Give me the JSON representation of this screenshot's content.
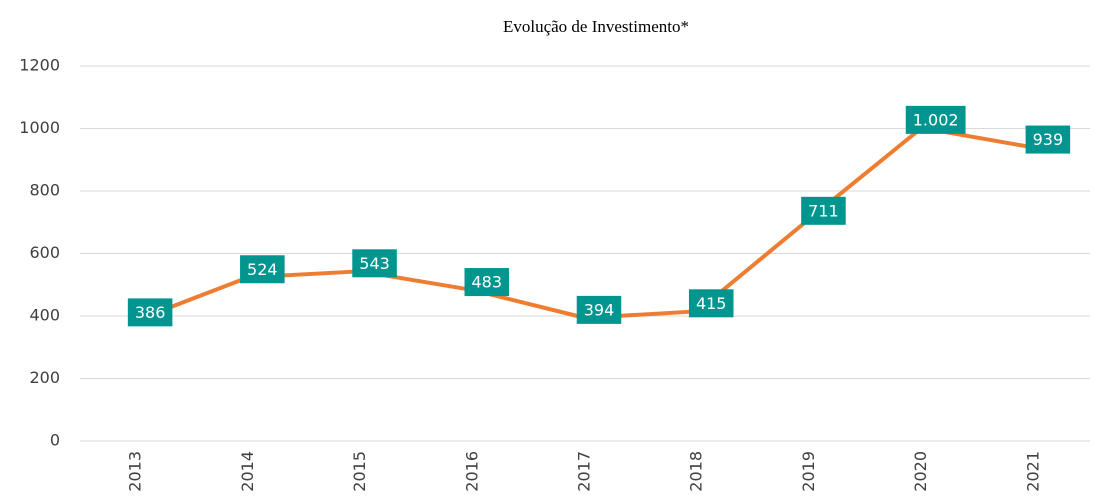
{
  "chart_data": {
    "type": "line",
    "title": "Evolução de Investimento*",
    "categories": [
      "2013",
      "2014",
      "2015",
      "2016",
      "2017",
      "2018",
      "2019",
      "2020",
      "2021"
    ],
    "series": [
      {
        "name": "Investimento",
        "color": "#ed7d31",
        "values": [
          386,
          524,
          543,
          483,
          394,
          415,
          711,
          1002,
          939
        ],
        "value_labels": [
          "386",
          "524",
          "543",
          "483",
          "394",
          "415",
          "711",
          "1.002",
          "939"
        ]
      }
    ],
    "label_color": "#00968f",
    "ylim": [
      0,
      1200
    ],
    "yticks": [
      0,
      200,
      400,
      600,
      800,
      1000,
      1200
    ],
    "grid": true
  }
}
